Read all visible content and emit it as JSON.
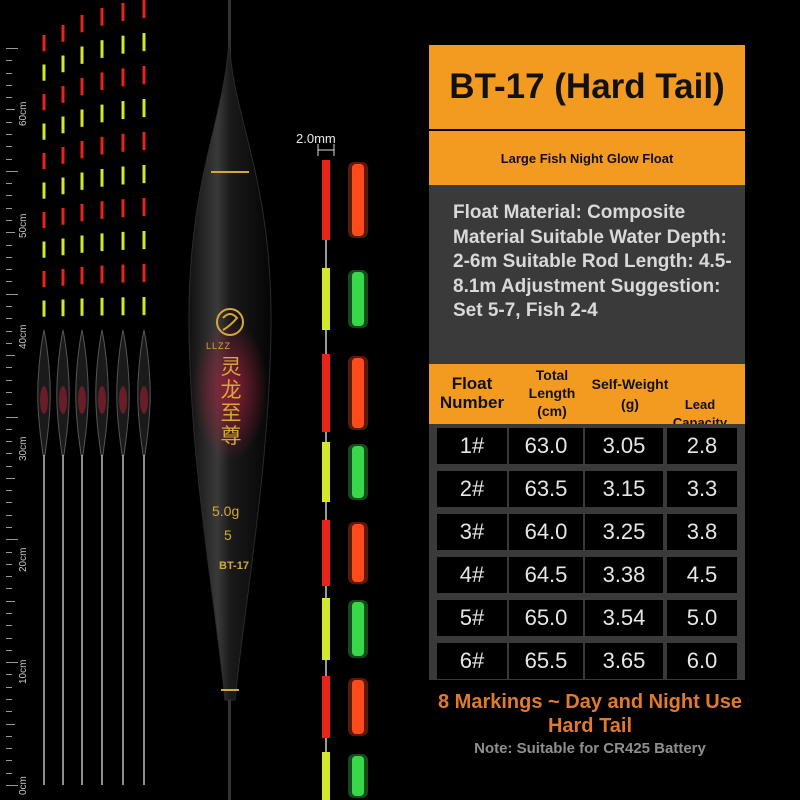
{
  "ruler": {
    "labels": [
      "60cm",
      "50cm",
      "40cm",
      "30cm",
      "20cm",
      "10cm",
      "0cm"
    ]
  },
  "float_printing": {
    "brand": "LLZZ",
    "weight": "5.0g",
    "number": "5",
    "model": "BT-17"
  },
  "tip": {
    "diameter_label": "2.0mm"
  },
  "panel": {
    "title": "BT-17 (Hard Tail)",
    "subtitle": "Large Fish Night Glow Float",
    "description": "Float Material: Composite Material Suitable Water Depth: 2-6m Suitable Rod Length: 4.5-8.1m Adjustment Suggestion: Set 5-7, Fish 2-4"
  },
  "table": {
    "headers": [
      "Float Number",
      "Total Length (cm)",
      "Self-Weight (g)",
      "Lead Capacity (g)"
    ],
    "rows": [
      [
        "1#",
        "63.0",
        "3.05",
        "2.8"
      ],
      [
        "2#",
        "63.5",
        "3.15",
        "3.3"
      ],
      [
        "3#",
        "64.0",
        "3.25",
        "3.8"
      ],
      [
        "4#",
        "64.5",
        "3.38",
        "4.5"
      ],
      [
        "5#",
        "65.0",
        "3.54",
        "5.0"
      ],
      [
        "6#",
        "65.5",
        "3.65",
        "6.0"
      ]
    ]
  },
  "footer": {
    "line1": "8 Markings ~ Day and Night Use",
    "line2": "Hard Tail",
    "note": "Note: Suitable for CR425 Battery"
  },
  "colors": {
    "accent": "#f39a21",
    "panel_gray": "#3a3a3a",
    "glow_red": "#ff4a1c",
    "glow_green": "#39d84a",
    "tip_red": "#e8241a",
    "tip_yellow": "#d4e82a",
    "footer_orange": "#e07a2e"
  }
}
